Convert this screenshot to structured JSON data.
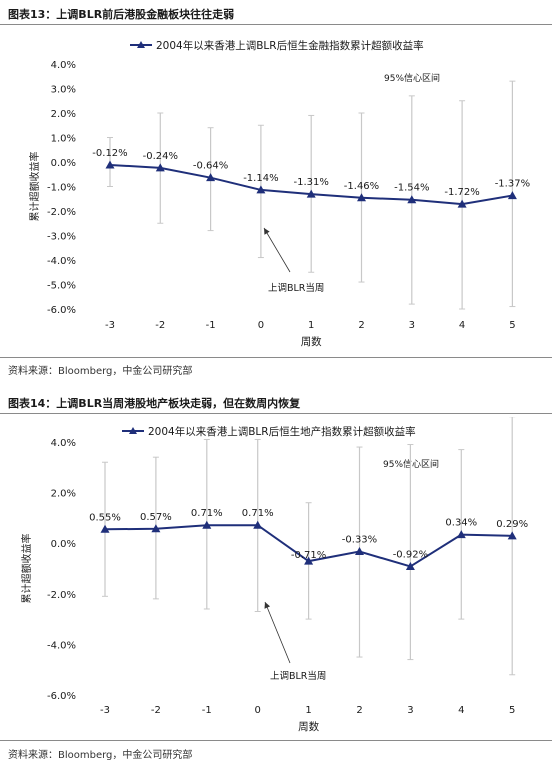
{
  "figures": [
    {
      "caption": "图表13：上调BLR前后港股金融板块往往走弱",
      "source": "资料来源：Bloomberg，中金公司研究部"
    },
    {
      "caption": "图表14：上调BLR当周港股地产板块走弱，但在数周内恢复",
      "source": "资料来源：Bloomberg，中金公司研究部"
    }
  ],
  "colors": {
    "line": "#1f2f7a",
    "whisker": "#c8c8c8",
    "text": "#1a1a1a"
  },
  "chart_data": [
    {
      "type": "line",
      "title": "",
      "xlabel": "周数",
      "ylabel": "累计超额收益率",
      "categories": [
        "-3",
        "-2",
        "-1",
        "0",
        "1",
        "2",
        "3",
        "4",
        "5"
      ],
      "series": [
        {
          "name": "2004年以来香港上调BLR后恒生金融指数累计超额收益率",
          "values": [
            -0.12,
            -0.24,
            -0.64,
            -1.14,
            -1.31,
            -1.46,
            -1.54,
            -1.72,
            -1.37
          ],
          "data_labels": [
            "-0.12%",
            "-0.24%",
            "-0.64%",
            "-1.14%",
            "-1.31%",
            "-1.46%",
            "-1.54%",
            "-1.72%",
            "-1.37%"
          ]
        }
      ],
      "confidence_interval": {
        "label": "95%信心区间",
        "low": [
          -1.0,
          -2.5,
          -2.8,
          -3.9,
          -4.5,
          -4.9,
          -5.8,
          -6.0,
          -5.9
        ],
        "high": [
          1.0,
          2.0,
          1.4,
          1.5,
          1.9,
          2.0,
          2.7,
          2.5,
          3.3
        ]
      },
      "annotation": {
        "text": "上调BLR当周",
        "category": "0"
      },
      "ylim": [
        -6.0,
        4.0
      ],
      "yticks": [
        4,
        3,
        2,
        1,
        0,
        -1,
        -2,
        -3,
        -4,
        -5,
        -6
      ],
      "ytick_labels": [
        "4.0%",
        "3.0%",
        "2.0%",
        "1.0%",
        "0.0%",
        "-1.0%",
        "-2.0%",
        "-3.0%",
        "-4.0%",
        "-5.0%",
        "-6.0%"
      ],
      "grid": false,
      "legend": "top"
    },
    {
      "type": "line",
      "title": "",
      "xlabel": "周数",
      "ylabel": "累计超额收益率",
      "categories": [
        "-3",
        "-2",
        "-1",
        "0",
        "1",
        "2",
        "3",
        "4",
        "5"
      ],
      "series": [
        {
          "name": "2004年以来香港上调BLR后恒生地产指数累计超额收益率",
          "values": [
            0.55,
            0.57,
            0.71,
            0.71,
            -0.71,
            -0.33,
            -0.92,
            0.34,
            0.29
          ],
          "data_labels": [
            "0.55%",
            "0.57%",
            "0.71%",
            "0.71%",
            "-0.71%",
            "-0.33%",
            "-0.92%",
            "0.34%",
            "0.29%"
          ]
        }
      ],
      "confidence_interval": {
        "label": "95%信心区间",
        "low": [
          -2.1,
          -2.2,
          -2.6,
          -2.7,
          -3.0,
          -4.5,
          -4.6,
          -3.0,
          -5.2
        ],
        "high": [
          3.2,
          3.4,
          4.1,
          4.1,
          1.6,
          3.8,
          3.9,
          3.7,
          5.0
        ]
      },
      "annotation": {
        "text": "上调BLR当周",
        "category": "0"
      },
      "ylim": [
        -6.0,
        4.0
      ],
      "yticks": [
        4,
        2,
        0,
        -2,
        -4,
        -6
      ],
      "ytick_labels": [
        "4.0%",
        "2.0%",
        "0.0%",
        "-2.0%",
        "-4.0%",
        "-6.0%"
      ],
      "grid": false,
      "legend": "top"
    }
  ]
}
